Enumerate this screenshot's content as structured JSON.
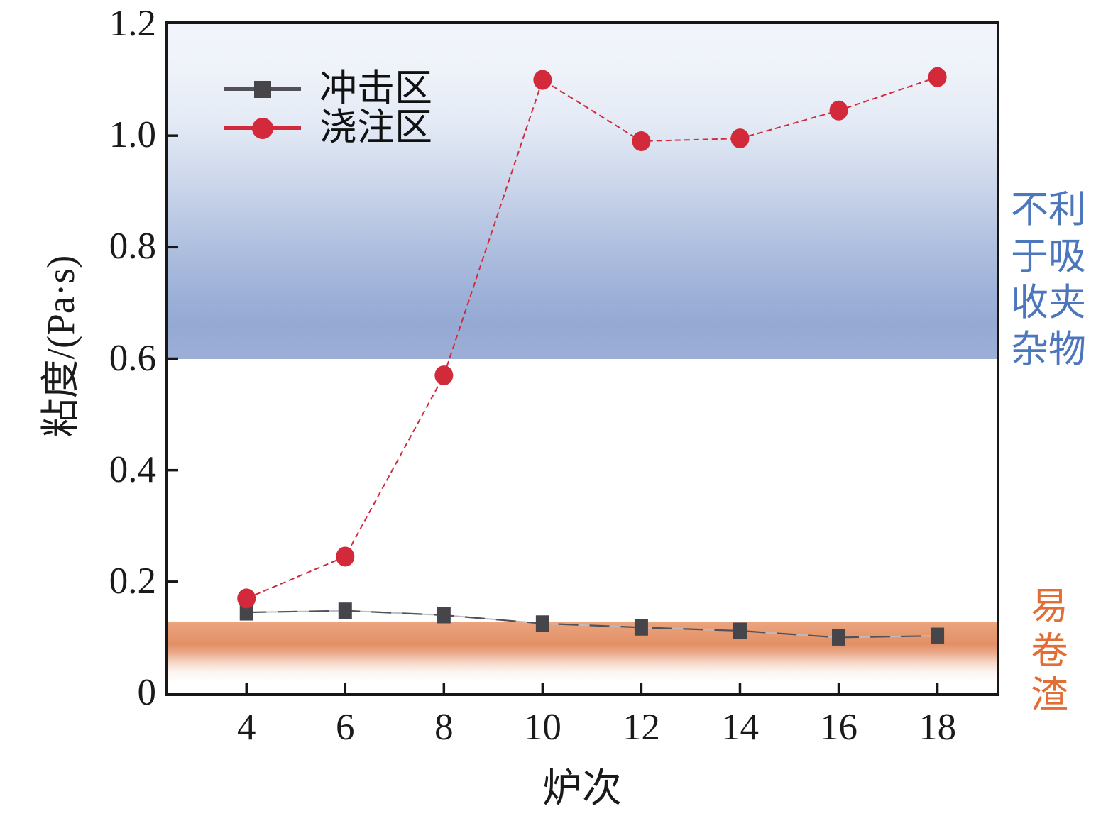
{
  "chart_data": {
    "type": "line",
    "x": [
      4,
      6,
      8,
      10,
      12,
      14,
      16,
      18
    ],
    "series": [
      {
        "name": "冲击区",
        "marker": "square",
        "color": "#45454a",
        "line_color": "#515157",
        "underlay_color": "#bcbcc0",
        "line_style": "long-dash",
        "values": [
          0.145,
          0.148,
          0.14,
          0.125,
          0.118,
          0.112,
          0.1,
          0.103
        ]
      },
      {
        "name": "浇注区",
        "marker": "circle",
        "color": "#d22a3a",
        "line_color": "#d22a3a",
        "line_style": "dashed",
        "values": [
          0.17,
          0.245,
          0.57,
          1.1,
          0.99,
          0.995,
          1.045,
          1.105
        ]
      }
    ],
    "xlabel": "炉次",
    "ylabel": "粘度/(Pa·s)",
    "xlim": [
      2.4,
      19.2
    ],
    "ylim": [
      0,
      1.2
    ],
    "grid": false,
    "legend_position": "top-left",
    "xticks": [
      {
        "v": 4,
        "label": "4"
      },
      {
        "v": 6,
        "label": "6"
      },
      {
        "v": 8,
        "label": "8"
      },
      {
        "v": 10,
        "label": "10"
      },
      {
        "v": 12,
        "label": "12"
      },
      {
        "v": 14,
        "label": "14"
      },
      {
        "v": 16,
        "label": "16"
      },
      {
        "v": 18,
        "label": "18"
      }
    ],
    "yticks": [
      {
        "v": 0,
        "label": "0",
        "mark": false
      },
      {
        "v": 0.2,
        "label": "0.2",
        "mark": true
      },
      {
        "v": 0.4,
        "label": "0.4",
        "mark": true
      },
      {
        "v": 0.6,
        "label": "0.6",
        "mark": true
      },
      {
        "v": 0.8,
        "label": "0.8",
        "mark": true
      },
      {
        "v": 1.0,
        "label": "1.0",
        "mark": true
      },
      {
        "v": 1.2,
        "label": "1.2",
        "mark": false
      }
    ],
    "bands": [
      {
        "name": "band-inclusion",
        "from": 0.6,
        "to": 1.2,
        "label": "不利于吸收夹杂物",
        "label_color": "#4c77bc"
      },
      {
        "name": "band-slag",
        "from": 0.02,
        "to": 0.128,
        "label": "易卷渣",
        "label_color": "#e26e35"
      }
    ]
  }
}
